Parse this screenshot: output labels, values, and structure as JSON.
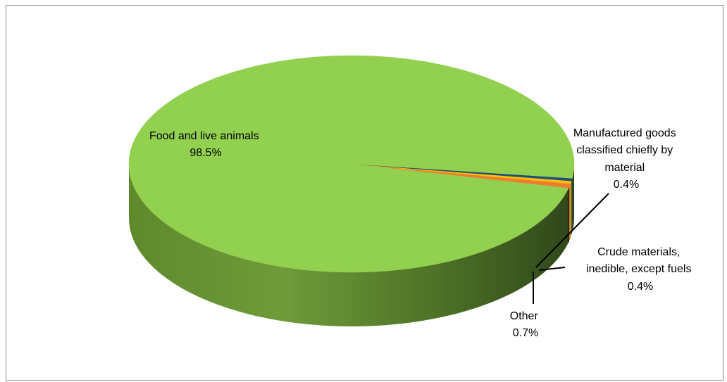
{
  "chart_data": {
    "type": "pie",
    "style": "3d",
    "title": "",
    "legend": "none",
    "slices": [
      {
        "name": "Food and live animals",
        "value": 98.5,
        "label": "98.5%",
        "color": "#92d050",
        "label_lines": [
          "Food and live animals",
          "98.5%"
        ]
      },
      {
        "name": "Manufactured goods classified chiefly  by material",
        "value": 0.4,
        "label": "0.4%",
        "color": "#1f4e79",
        "label_lines": [
          "Manufactured goods",
          "classified chiefly  by",
          "material",
          "0.4%"
        ]
      },
      {
        "name": "Crude materials, inedible, except fuels",
        "value": 0.4,
        "label": "0.4%",
        "color": "#ffc000",
        "label_lines": [
          "Crude materials,",
          "inedible, except fuels",
          "0.4%"
        ]
      },
      {
        "name": "Other",
        "value": 0.7,
        "label": "0.7%",
        "color": "#ed7d31",
        "label_lines": [
          "Other",
          "0.7%"
        ]
      }
    ]
  }
}
